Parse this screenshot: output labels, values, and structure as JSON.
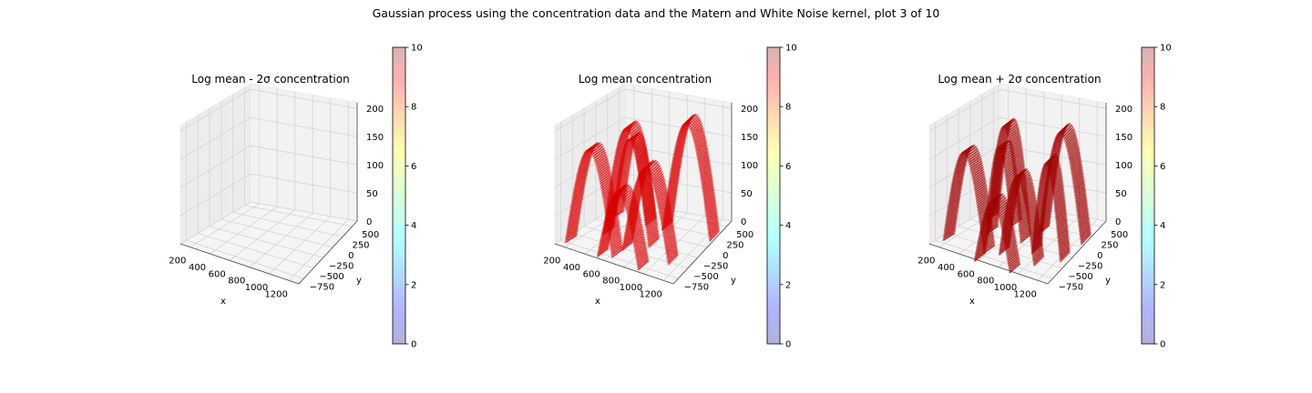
{
  "suptitle": "Gaussian process using the  concentration data and the Matern and White Noise kernel, plot 3 of 10",
  "chart_data": [
    {
      "type": "scatter",
      "title": "Log mean - 2σ concentration",
      "xlabel": "x",
      "ylabel": "y",
      "zlabel": "",
      "xticks": [
        "200",
        "400",
        "600",
        "800",
        "1000",
        "1200"
      ],
      "yticks": [
        "−750",
        "−500",
        "−250",
        "0",
        "250",
        "500"
      ],
      "zticks": [
        "0",
        "50",
        "100",
        "150",
        "200"
      ],
      "xlim": [
        100,
        1250
      ],
      "ylim": [
        -900,
        650
      ],
      "zlim": [
        0,
        210
      ],
      "points_visible": false,
      "marker_color": "#d90000",
      "colorbar": {
        "min": 0,
        "max": 10,
        "ticks": [
          "0",
          "2",
          "4",
          "6",
          "8",
          "10"
        ],
        "colormap": "jet",
        "alpha": 0.3
      },
      "grid": true
    },
    {
      "type": "scatter",
      "title": "Log mean concentration",
      "xlabel": "x",
      "ylabel": "y",
      "zlabel": "",
      "xticks": [
        "200",
        "400",
        "600",
        "800",
        "1000",
        "1200"
      ],
      "yticks": [
        "−750",
        "−500",
        "−250",
        "0",
        "250",
        "500"
      ],
      "zticks": [
        "0",
        "50",
        "100",
        "150",
        "200"
      ],
      "xlim": [
        100,
        1250
      ],
      "ylim": [
        -900,
        650
      ],
      "zlim": [
        0,
        210
      ],
      "points_visible": true,
      "marker_color": "#d90000",
      "colorbar": {
        "min": 0,
        "max": 10,
        "ticks": [
          "0",
          "2",
          "4",
          "6",
          "8",
          "10"
        ],
        "colormap": "jet",
        "alpha": 0.3
      },
      "grid": true
    },
    {
      "type": "scatter",
      "title": "Log mean + 2σ concentration",
      "xlabel": "x",
      "ylabel": "y",
      "zlabel": "",
      "xticks": [
        "200",
        "400",
        "600",
        "800",
        "1000",
        "1200"
      ],
      "yticks": [
        "−750",
        "−500",
        "−250",
        "0",
        "250",
        "500"
      ],
      "zticks": [
        "0",
        "50",
        "100",
        "150",
        "200"
      ],
      "xlim": [
        100,
        1250
      ],
      "ylim": [
        -900,
        650
      ],
      "zlim": [
        0,
        210
      ],
      "points_visible": true,
      "marker_color": "#a00000",
      "colorbar": {
        "min": 0,
        "max": 10,
        "ticks": [
          "0",
          "2",
          "4",
          "6",
          "8",
          "10"
        ],
        "colormap": "jet",
        "alpha": 0.3
      },
      "grid": true
    }
  ]
}
